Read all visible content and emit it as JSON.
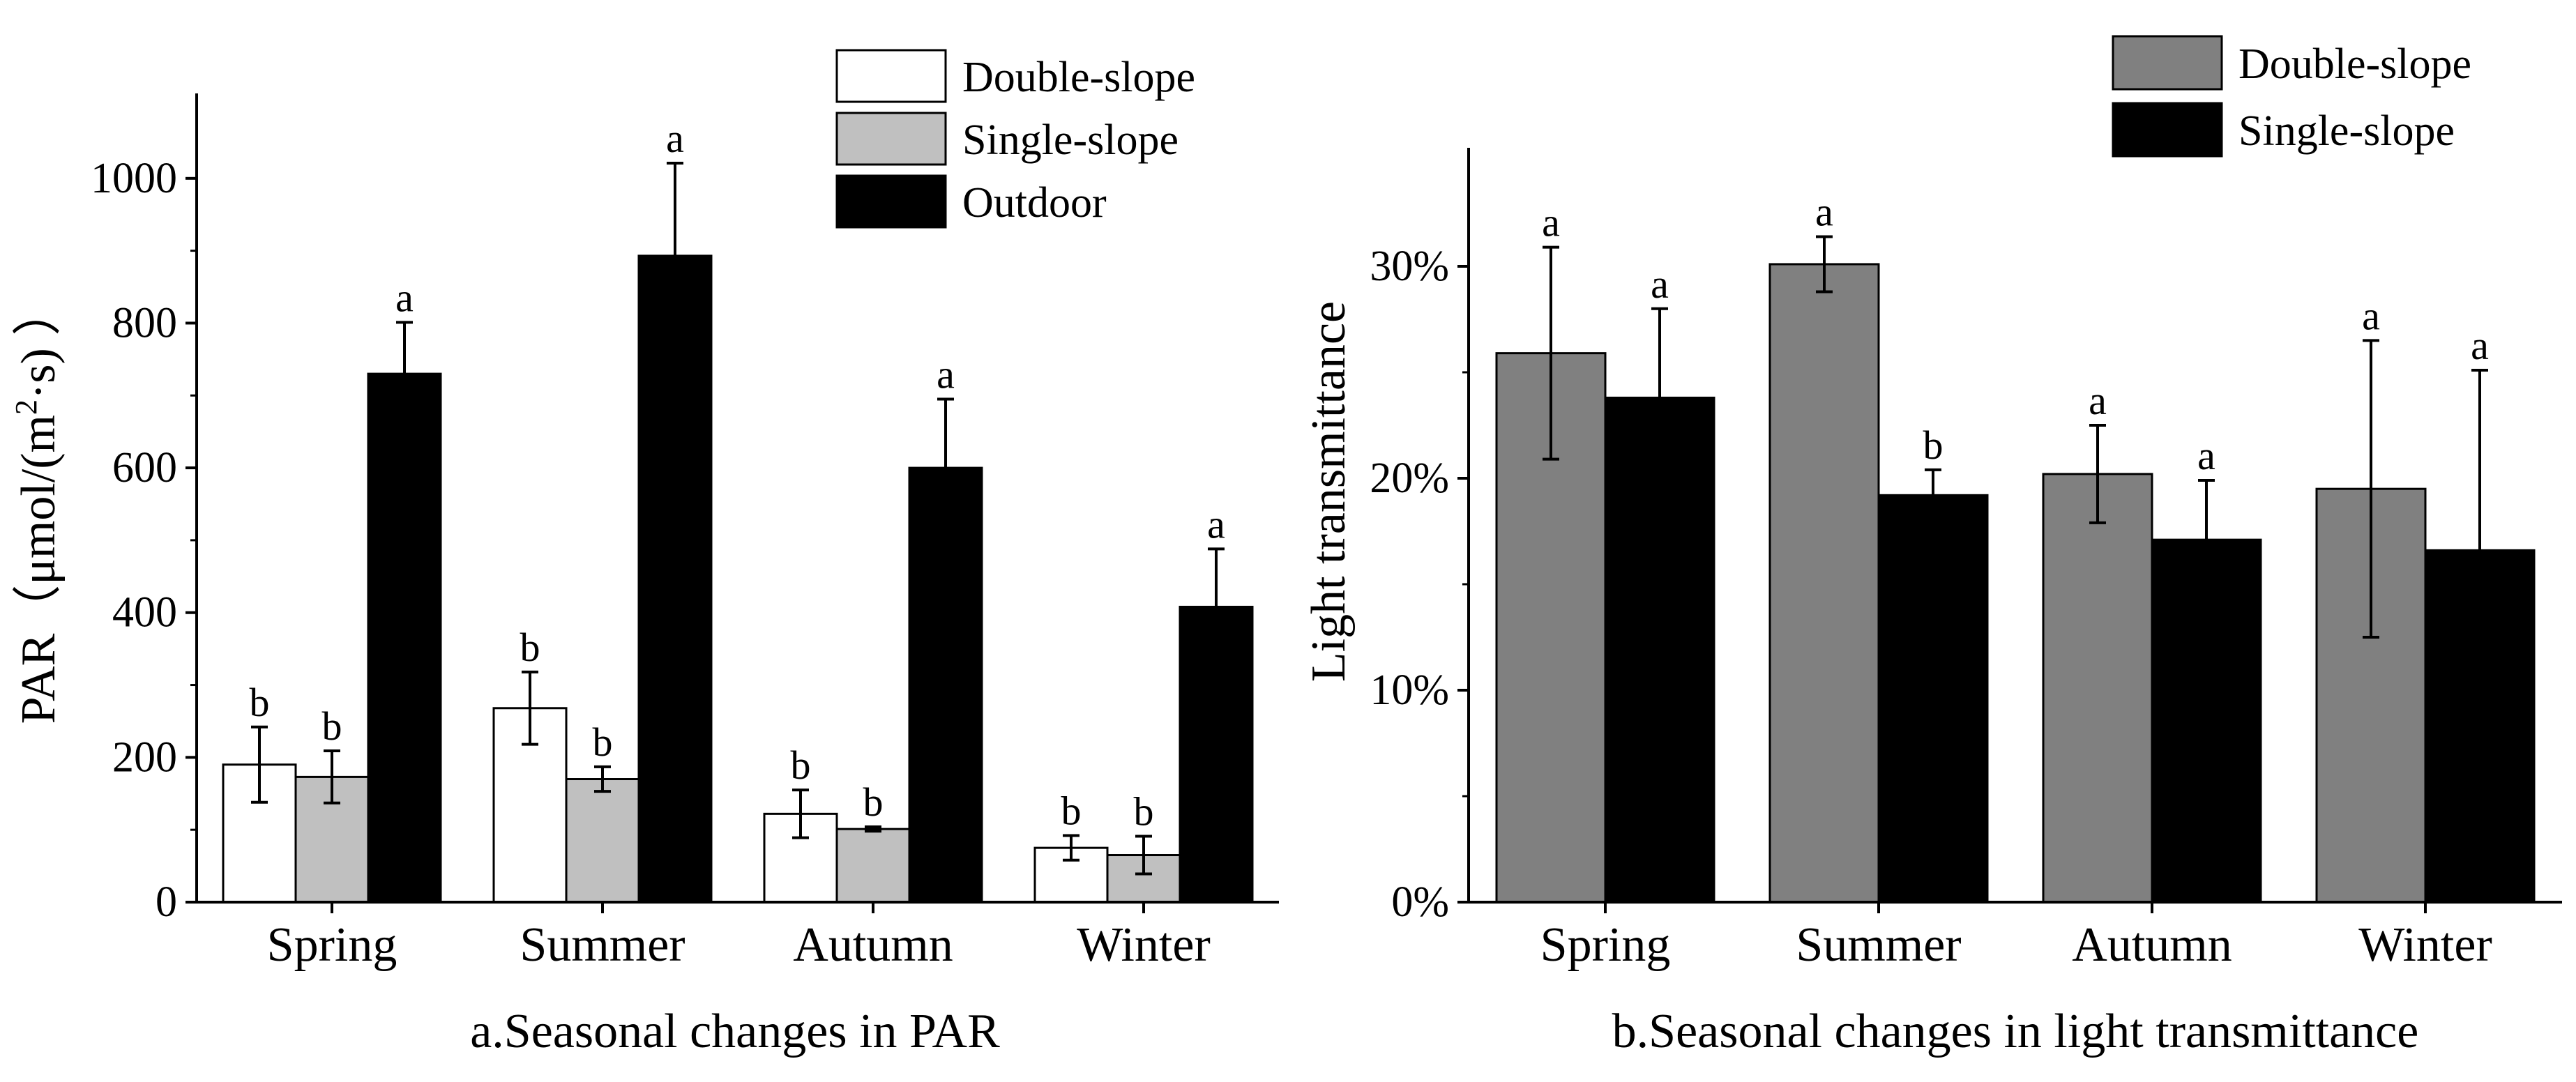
{
  "chart_data": [
    {
      "type": "bar",
      "title": "a.Seasonal changes in PAR",
      "xlabel": "",
      "ylabel": "PAR（μmol/(m²·s)）",
      "ylabel_parts": {
        "main": "PAR（μmol/(m",
        "sup": "2",
        "tail": "·s) ）"
      },
      "categories": [
        "Spring",
        "Summer",
        "Autumn",
        "Winter"
      ],
      "ylim": [
        0,
        1100
      ],
      "yticks": [
        0,
        200,
        400,
        600,
        800,
        1000
      ],
      "legend_position": "top-right",
      "series": [
        {
          "name": "Double-slope",
          "color": "#ffffff",
          "values": [
            190,
            268,
            122,
            75
          ],
          "errors": [
            52,
            50,
            33,
            17
          ],
          "letters": [
            "b",
            "b",
            "b",
            "b"
          ]
        },
        {
          "name": "Single-slope",
          "color": "#c0c0c0",
          "values": [
            173,
            170,
            101,
            65
          ],
          "errors": [
            36,
            17,
            3,
            26
          ],
          "letters": [
            "b",
            "b",
            "b",
            "b"
          ]
        },
        {
          "name": "Outdoor",
          "color": "#000000",
          "values": [
            730,
            893,
            600,
            408
          ],
          "errors": [
            71,
            128,
            95,
            80
          ],
          "letters": [
            "a",
            "a",
            "a",
            "a"
          ]
        }
      ]
    },
    {
      "type": "bar",
      "title": "b.Seasonal changes in light transmittance",
      "xlabel": "",
      "ylabel": "Light transmittance",
      "categories": [
        "Spring",
        "Summer",
        "Autumn",
        "Winter"
      ],
      "ylim": [
        0,
        35
      ],
      "yticks": [
        0,
        10,
        20,
        30
      ],
      "ytick_labels": [
        "0%",
        "10%",
        "20%",
        "30%"
      ],
      "legend_position": "top-right",
      "series": [
        {
          "name": "Double-slope",
          "color": "#808080",
          "values": [
            25.9,
            30.1,
            20.2,
            19.5
          ],
          "errors": [
            5.0,
            1.3,
            2.3,
            7.0
          ],
          "letters": [
            "a",
            "a",
            "a",
            "a"
          ]
        },
        {
          "name": "Single-slope",
          "color": "#000000",
          "values": [
            23.8,
            19.2,
            17.1,
            16.6
          ],
          "errors": [
            4.2,
            1.2,
            2.8,
            8.5
          ],
          "letters": [
            "a",
            "b",
            "a",
            "a"
          ]
        }
      ]
    }
  ]
}
